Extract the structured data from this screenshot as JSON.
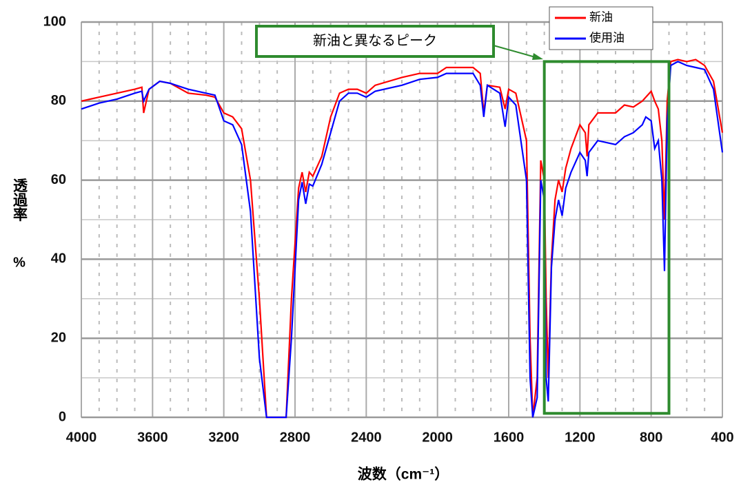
{
  "chart_data": {
    "type": "line",
    "x_label": "波数（cm⁻¹）",
    "y_label": "透過率",
    "y_unit": "%",
    "xlim": [
      4000,
      400
    ],
    "ylim": [
      0,
      100
    ],
    "xticks": [
      4000,
      3600,
      3200,
      2800,
      2400,
      2000,
      1600,
      1200,
      800,
      400
    ],
    "yticks": [
      0,
      20,
      40,
      60,
      80,
      100
    ],
    "grid": true,
    "legend": "upper right",
    "x": [
      4000,
      3900,
      3800,
      3700,
      3660,
      3650,
      3620,
      3560,
      3500,
      3400,
      3300,
      3250,
      3200,
      3150,
      3100,
      3050,
      3000,
      2960,
      2850,
      2820,
      2780,
      2760,
      2740,
      2720,
      2700,
      2650,
      2600,
      2550,
      2500,
      2450,
      2400,
      2350,
      2200,
      2100,
      2000,
      1950,
      1800,
      1760,
      1740,
      1720,
      1650,
      1620,
      1600,
      1560,
      1500,
      1480,
      1465,
      1440,
      1420,
      1400,
      1390,
      1378,
      1360,
      1340,
      1320,
      1300,
      1280,
      1250,
      1200,
      1170,
      1160,
      1150,
      1100,
      1000,
      950,
      900,
      850,
      830,
      800,
      780,
      760,
      740,
      725,
      710,
      690,
      650,
      600,
      550,
      500,
      450,
      400
    ],
    "series": [
      {
        "name": "新油",
        "color": "#ff0000",
        "values": [
          80,
          81,
          82,
          83,
          83.5,
          77,
          83,
          85,
          84.5,
          82,
          81.5,
          81,
          77,
          76,
          73,
          60,
          30,
          0,
          0,
          30,
          58,
          62,
          57,
          62,
          61,
          66,
          76,
          82,
          83,
          83,
          82,
          84,
          86,
          87,
          87,
          88.5,
          88.5,
          87,
          77,
          84,
          83.5,
          78,
          83,
          82,
          70,
          20,
          0,
          10,
          65,
          60,
          30,
          10,
          40,
          55,
          60,
          57,
          63,
          68,
          74,
          72,
          66,
          74,
          77,
          77,
          79,
          78.5,
          80,
          81,
          82.5,
          80,
          78,
          70,
          50,
          80,
          90,
          90.5,
          90,
          90.5,
          89,
          85,
          72
        ]
      },
      {
        "name": "使用油",
        "color": "#0000ff",
        "values": [
          78,
          79.5,
          80.5,
          82,
          82.5,
          80,
          83,
          85,
          84.5,
          83,
          82,
          81.5,
          75,
          74,
          69,
          52,
          15,
          0,
          0,
          20,
          55,
          59.5,
          54,
          59,
          58.5,
          64,
          72,
          80,
          82,
          82,
          81,
          82.5,
          84,
          85.5,
          86,
          87,
          87,
          84,
          76,
          84,
          82,
          73.5,
          81,
          79,
          60,
          10,
          0,
          5,
          60,
          55,
          10,
          4,
          38,
          50,
          55,
          51,
          58,
          62,
          67,
          65,
          61,
          67,
          70,
          69,
          71,
          72,
          74,
          76,
          75,
          68,
          70,
          60,
          37,
          75,
          89,
          90,
          89,
          88.5,
          88,
          83,
          67
        ]
      }
    ],
    "annotation": {
      "text": "新油と異なるピーク",
      "color": "#2e8b2e",
      "x_range": [
        1400,
        700
      ],
      "y_range": [
        1,
        90
      ]
    }
  }
}
